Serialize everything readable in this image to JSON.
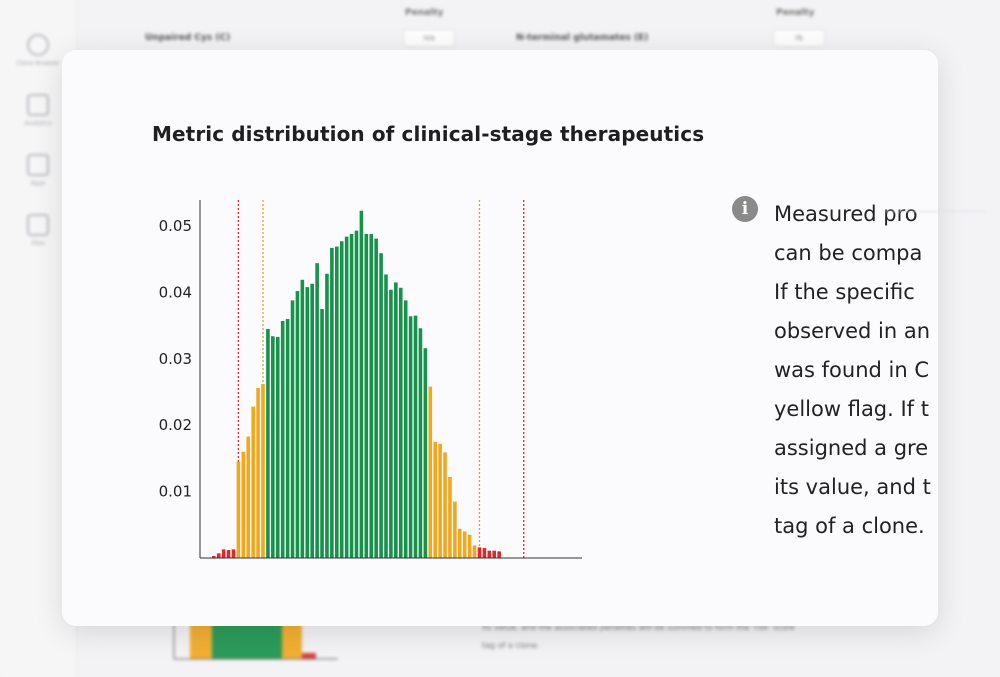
{
  "background": {
    "sidebar": {
      "items": [
        {
          "label": "Clone Browser",
          "icon": "gear-icon"
        },
        {
          "label": "Analytics",
          "icon": "bar-chart-icon"
        },
        {
          "label": "Apps",
          "icon": "apps-icon"
        },
        {
          "label": "Files",
          "icon": "file-icon"
        }
      ]
    },
    "columns": {
      "penalty_left": "Penalty",
      "penalty_right": "Penalty"
    },
    "rows": {
      "left_label": "Unpaired Cys (C)",
      "left_value": "n/a",
      "right_label": "N-terminal glutamates (E)",
      "right_value": "rb"
    },
    "footer_text": [
      "its value, and the associated penalties will be summed to form the 'risk' score",
      "tag of a clone."
    ]
  },
  "modal": {
    "title": "Metric distribution of clinical-stage therapeutics",
    "info_lines": [
      "Measured pro",
      "can be compa",
      "If the specific",
      "observed in an",
      "was found in C",
      "yellow flag. If t",
      "assigned a gre",
      "its value, and t",
      "tag of a clone."
    ]
  },
  "chart_data": {
    "type": "bar",
    "title": "",
    "xlabel": "",
    "ylabel": "",
    "ylim": [
      0,
      0.055
    ],
    "yticks": [
      "0.01",
      "0.02",
      "0.03",
      "0.04",
      "0.05"
    ],
    "ytick_values": [
      0.01,
      0.02,
      0.03,
      0.04,
      0.05
    ],
    "colors": {
      "red": "#d92b2b",
      "yellow": "#f2a81d",
      "green": "#17924a",
      "red_line": "#d92b2b",
      "yellow_line": "#e3a21c"
    },
    "thresholds": {
      "red_low_index": 5.5,
      "yellow_low_index": 10.5,
      "yellow_high_index": 54.5,
      "red_high_index": 63.5
    },
    "bins": [
      {
        "v": 0.0003,
        "c": "red"
      },
      {
        "v": 0.0007,
        "c": "red"
      },
      {
        "v": 0.0013,
        "c": "red"
      },
      {
        "v": 0.0012,
        "c": "red"
      },
      {
        "v": 0.0013,
        "c": "red"
      },
      {
        "v": 0.0145,
        "c": "yellow"
      },
      {
        "v": 0.016,
        "c": "yellow"
      },
      {
        "v": 0.0183,
        "c": "yellow"
      },
      {
        "v": 0.0228,
        "c": "yellow"
      },
      {
        "v": 0.0256,
        "c": "yellow"
      },
      {
        "v": 0.0262,
        "c": "yellow"
      },
      {
        "v": 0.0345,
        "c": "green"
      },
      {
        "v": 0.0334,
        "c": "green"
      },
      {
        "v": 0.0333,
        "c": "green"
      },
      {
        "v": 0.0357,
        "c": "green"
      },
      {
        "v": 0.036,
        "c": "green"
      },
      {
        "v": 0.0388,
        "c": "green"
      },
      {
        "v": 0.0402,
        "c": "green"
      },
      {
        "v": 0.0419,
        "c": "green"
      },
      {
        "v": 0.0408,
        "c": "green"
      },
      {
        "v": 0.0413,
        "c": "green"
      },
      {
        "v": 0.0444,
        "c": "green"
      },
      {
        "v": 0.0375,
        "c": "green"
      },
      {
        "v": 0.0428,
        "c": "green"
      },
      {
        "v": 0.0467,
        "c": "green"
      },
      {
        "v": 0.0469,
        "c": "green"
      },
      {
        "v": 0.0477,
        "c": "green"
      },
      {
        "v": 0.0484,
        "c": "green"
      },
      {
        "v": 0.0488,
        "c": "green"
      },
      {
        "v": 0.0493,
        "c": "green"
      },
      {
        "v": 0.0523,
        "c": "green"
      },
      {
        "v": 0.0488,
        "c": "green"
      },
      {
        "v": 0.0488,
        "c": "green"
      },
      {
        "v": 0.0481,
        "c": "green"
      },
      {
        "v": 0.0459,
        "c": "green"
      },
      {
        "v": 0.0427,
        "c": "green"
      },
      {
        "v": 0.0404,
        "c": "green"
      },
      {
        "v": 0.0415,
        "c": "green"
      },
      {
        "v": 0.0407,
        "c": "green"
      },
      {
        "v": 0.0388,
        "c": "green"
      },
      {
        "v": 0.0364,
        "c": "green"
      },
      {
        "v": 0.0365,
        "c": "green"
      },
      {
        "v": 0.0346,
        "c": "green"
      },
      {
        "v": 0.0316,
        "c": "green"
      },
      {
        "v": 0.0258,
        "c": "yellow"
      },
      {
        "v": 0.0175,
        "c": "yellow"
      },
      {
        "v": 0.0172,
        "c": "yellow"
      },
      {
        "v": 0.0159,
        "c": "yellow"
      },
      {
        "v": 0.0122,
        "c": "yellow"
      },
      {
        "v": 0.0085,
        "c": "yellow"
      },
      {
        "v": 0.0044,
        "c": "yellow"
      },
      {
        "v": 0.004,
        "c": "yellow"
      },
      {
        "v": 0.0035,
        "c": "yellow"
      },
      {
        "v": 0.0019,
        "c": "yellow"
      },
      {
        "v": 0.0016,
        "c": "red"
      },
      {
        "v": 0.0015,
        "c": "red"
      },
      {
        "v": 0.0011,
        "c": "red"
      },
      {
        "v": 0.0011,
        "c": "red"
      },
      {
        "v": 0.001,
        "c": "red"
      }
    ]
  }
}
